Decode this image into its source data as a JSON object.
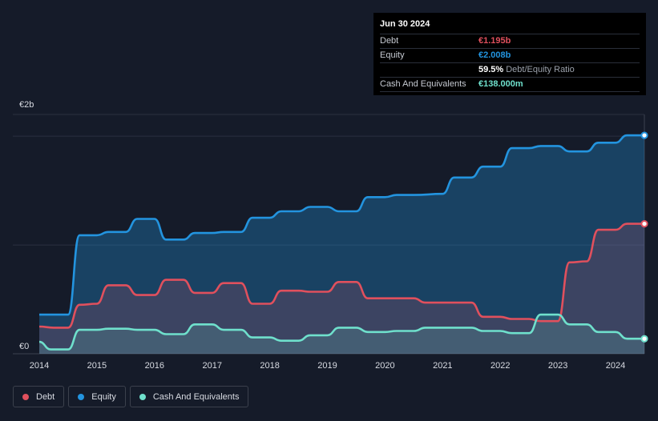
{
  "colors": {
    "background": "#151b29",
    "debt": "#e0505d",
    "equity": "#2394df",
    "cash": "#6fe0cc",
    "grid": "#2b3140",
    "axis_text": "#d8dbe2"
  },
  "tooltip": {
    "date": "Jun 30 2024",
    "rows": [
      {
        "label": "Debt",
        "value": "€1.195b",
        "color": "#e0505d"
      },
      {
        "label": "Equity",
        "value": "€2.008b",
        "color": "#2394df"
      },
      {
        "label": "",
        "value": "59.5%",
        "extra": "Debt/Equity Ratio",
        "color": "#ffffff"
      },
      {
        "label": "Cash And Equivalents",
        "value": "€138.000m",
        "color": "#6fe0cc"
      }
    ]
  },
  "legend": [
    {
      "label": "Debt",
      "color": "#e0505d"
    },
    {
      "label": "Equity",
      "color": "#2394df"
    },
    {
      "label": "Cash And Equivalents",
      "color": "#6fe0cc"
    }
  ],
  "chart_data": {
    "type": "area",
    "ylim": [
      0,
      2.2
    ],
    "y_unit": "€b",
    "y_tick_labels": [
      {
        "value": 2.0,
        "label": "€2b"
      },
      {
        "value": 0,
        "label": "€0"
      }
    ],
    "x_ticks": [
      "2014",
      "2015",
      "2016",
      "2017",
      "2018",
      "2019",
      "2020",
      "2021",
      "2022",
      "2023",
      "2024"
    ],
    "xlim": [
      2014.0,
      2024.5
    ],
    "series": [
      {
        "name": "Debt",
        "points": [
          [
            2014.0,
            0.25
          ],
          [
            2014.25,
            0.24
          ],
          [
            2014.5,
            0.24
          ],
          [
            2014.7,
            0.45
          ],
          [
            2015.0,
            0.46
          ],
          [
            2015.2,
            0.63
          ],
          [
            2015.5,
            0.63
          ],
          [
            2015.7,
            0.54
          ],
          [
            2016.0,
            0.54
          ],
          [
            2016.2,
            0.68
          ],
          [
            2016.5,
            0.68
          ],
          [
            2016.7,
            0.56
          ],
          [
            2017.0,
            0.56
          ],
          [
            2017.2,
            0.65
          ],
          [
            2017.5,
            0.65
          ],
          [
            2017.7,
            0.46
          ],
          [
            2018.0,
            0.46
          ],
          [
            2018.2,
            0.58
          ],
          [
            2018.5,
            0.58
          ],
          [
            2018.7,
            0.57
          ],
          [
            2019.0,
            0.57
          ],
          [
            2019.2,
            0.66
          ],
          [
            2019.5,
            0.66
          ],
          [
            2019.7,
            0.51
          ],
          [
            2020.0,
            0.51
          ],
          [
            2020.5,
            0.51
          ],
          [
            2020.7,
            0.47
          ],
          [
            2021.0,
            0.47
          ],
          [
            2021.5,
            0.47
          ],
          [
            2021.7,
            0.34
          ],
          [
            2022.0,
            0.34
          ],
          [
            2022.2,
            0.32
          ],
          [
            2022.5,
            0.32
          ],
          [
            2022.7,
            0.3
          ],
          [
            2023.0,
            0.3
          ],
          [
            2023.2,
            0.84
          ],
          [
            2023.5,
            0.85
          ],
          [
            2023.7,
            1.14
          ],
          [
            2024.0,
            1.14
          ],
          [
            2024.2,
            1.195
          ],
          [
            2024.5,
            1.195
          ]
        ]
      },
      {
        "name": "Equity",
        "points": [
          [
            2014.0,
            0.36
          ],
          [
            2014.5,
            0.36
          ],
          [
            2014.7,
            1.09
          ],
          [
            2015.0,
            1.09
          ],
          [
            2015.2,
            1.12
          ],
          [
            2015.5,
            1.12
          ],
          [
            2015.7,
            1.24
          ],
          [
            2016.0,
            1.24
          ],
          [
            2016.2,
            1.05
          ],
          [
            2016.5,
            1.05
          ],
          [
            2016.7,
            1.11
          ],
          [
            2017.0,
            1.11
          ],
          [
            2017.2,
            1.12
          ],
          [
            2017.5,
            1.12
          ],
          [
            2017.7,
            1.25
          ],
          [
            2018.0,
            1.25
          ],
          [
            2018.2,
            1.31
          ],
          [
            2018.5,
            1.31
          ],
          [
            2018.7,
            1.35
          ],
          [
            2019.0,
            1.35
          ],
          [
            2019.2,
            1.31
          ],
          [
            2019.5,
            1.31
          ],
          [
            2019.7,
            1.44
          ],
          [
            2020.0,
            1.44
          ],
          [
            2020.2,
            1.46
          ],
          [
            2020.5,
            1.46
          ],
          [
            2021.0,
            1.47
          ],
          [
            2021.2,
            1.62
          ],
          [
            2021.5,
            1.62
          ],
          [
            2021.7,
            1.72
          ],
          [
            2022.0,
            1.72
          ],
          [
            2022.2,
            1.89
          ],
          [
            2022.5,
            1.89
          ],
          [
            2022.7,
            1.91
          ],
          [
            2023.0,
            1.91
          ],
          [
            2023.2,
            1.86
          ],
          [
            2023.5,
            1.86
          ],
          [
            2023.7,
            1.94
          ],
          [
            2024.0,
            1.94
          ],
          [
            2024.2,
            2.008
          ],
          [
            2024.5,
            2.008
          ]
        ]
      },
      {
        "name": "Cash And Equivalents",
        "points": [
          [
            2014.0,
            0.11
          ],
          [
            2014.2,
            0.04
          ],
          [
            2014.5,
            0.04
          ],
          [
            2014.7,
            0.22
          ],
          [
            2015.0,
            0.22
          ],
          [
            2015.2,
            0.23
          ],
          [
            2015.5,
            0.23
          ],
          [
            2015.7,
            0.22
          ],
          [
            2016.0,
            0.22
          ],
          [
            2016.2,
            0.18
          ],
          [
            2016.5,
            0.18
          ],
          [
            2016.7,
            0.27
          ],
          [
            2017.0,
            0.27
          ],
          [
            2017.2,
            0.22
          ],
          [
            2017.5,
            0.22
          ],
          [
            2017.7,
            0.15
          ],
          [
            2018.0,
            0.15
          ],
          [
            2018.2,
            0.12
          ],
          [
            2018.5,
            0.12
          ],
          [
            2018.7,
            0.17
          ],
          [
            2019.0,
            0.17
          ],
          [
            2019.2,
            0.24
          ],
          [
            2019.5,
            0.24
          ],
          [
            2019.7,
            0.2
          ],
          [
            2020.0,
            0.2
          ],
          [
            2020.2,
            0.21
          ],
          [
            2020.5,
            0.21
          ],
          [
            2020.7,
            0.24
          ],
          [
            2021.0,
            0.24
          ],
          [
            2021.2,
            0.24
          ],
          [
            2021.5,
            0.24
          ],
          [
            2021.7,
            0.21
          ],
          [
            2022.0,
            0.21
          ],
          [
            2022.2,
            0.19
          ],
          [
            2022.5,
            0.19
          ],
          [
            2022.7,
            0.36
          ],
          [
            2023.0,
            0.36
          ],
          [
            2023.2,
            0.27
          ],
          [
            2023.5,
            0.27
          ],
          [
            2023.7,
            0.2
          ],
          [
            2024.0,
            0.2
          ],
          [
            2024.2,
            0.138
          ],
          [
            2024.5,
            0.138
          ]
        ]
      }
    ]
  }
}
